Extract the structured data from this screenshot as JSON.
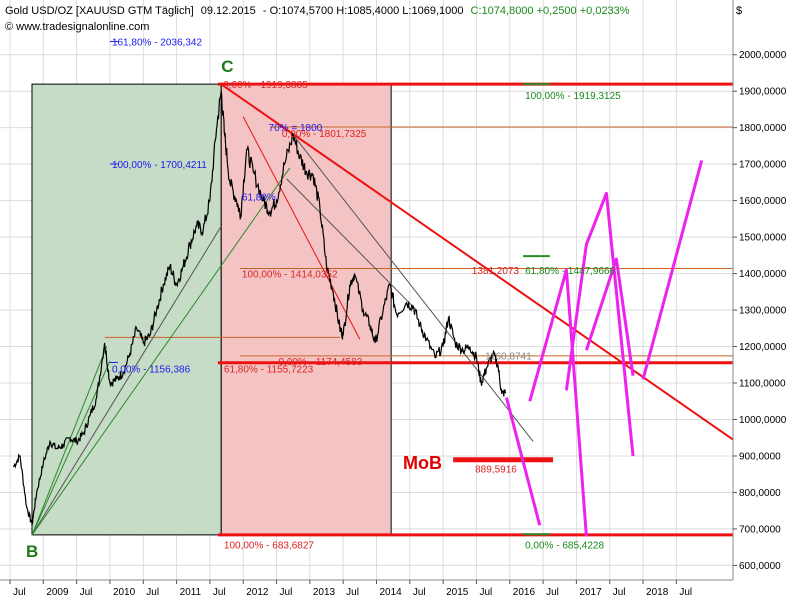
{
  "header": {
    "symbol": "Gold USD/OZ [XAUUSD GTM  Täglich]",
    "date": "09.12.2015",
    "quote_ohl": "- O:1074,5700 H:1085,4000 L:1069,1000",
    "quote_close": "C:1074,8000 +0,2500 +0,0233%",
    "website": "© www.tradesignalonline.com",
    "currency": "$"
  },
  "colors": {
    "price": "#000000",
    "grid": "#dcdcdc",
    "green_box": "#c6dcc6",
    "red_box": "#f4c4c4",
    "support_red": "#ee1111",
    "fib_orange": "#c86428",
    "projection": "#ee22ee",
    "fan_green": "#2a8a2a",
    "trend_grey": "#555555",
    "label_blue": "#1a1aee",
    "label_red": "#dd2222",
    "label_green": "#1a8a1a"
  },
  "chart_data": {
    "type": "line",
    "series": [
      {
        "values": [
          [
            2008.55,
            870
          ],
          [
            2008.65,
            900
          ],
          [
            2008.75,
            760
          ],
          [
            2008.83,
            712
          ],
          [
            2008.9,
            800
          ],
          [
            2009.0,
            880
          ],
          [
            2009.1,
            940
          ],
          [
            2009.2,
            920
          ],
          [
            2009.3,
            930
          ],
          [
            2009.4,
            950
          ],
          [
            2009.5,
            940
          ],
          [
            2009.6,
            960
          ],
          [
            2009.7,
            1010
          ],
          [
            2009.8,
            1060
          ],
          [
            2009.92,
            1210
          ],
          [
            2010.0,
            1100
          ],
          [
            2010.1,
            1110
          ],
          [
            2010.2,
            1130
          ],
          [
            2010.3,
            1180
          ],
          [
            2010.4,
            1250
          ],
          [
            2010.5,
            1210
          ],
          [
            2010.6,
            1230
          ],
          [
            2010.7,
            1300
          ],
          [
            2010.8,
            1370
          ],
          [
            2010.9,
            1420
          ],
          [
            2011.0,
            1370
          ],
          [
            2011.1,
            1420
          ],
          [
            2011.2,
            1480
          ],
          [
            2011.3,
            1530
          ],
          [
            2011.4,
            1520
          ],
          [
            2011.5,
            1600
          ],
          [
            2011.6,
            1800
          ],
          [
            2011.67,
            1900
          ],
          [
            2011.72,
            1780
          ],
          [
            2011.8,
            1650
          ],
          [
            2011.9,
            1600
          ],
          [
            2011.96,
            1560
          ],
          [
            2012.05,
            1740
          ],
          [
            2012.15,
            1680
          ],
          [
            2012.3,
            1600
          ],
          [
            2012.4,
            1570
          ],
          [
            2012.5,
            1600
          ],
          [
            2012.62,
            1700
          ],
          [
            2012.75,
            1780
          ],
          [
            2012.85,
            1720
          ],
          [
            2012.95,
            1680
          ],
          [
            2013.05,
            1670
          ],
          [
            2013.15,
            1580
          ],
          [
            2013.25,
            1420
          ],
          [
            2013.35,
            1350
          ],
          [
            2013.45,
            1250
          ],
          [
            2013.5,
            1230
          ],
          [
            2013.6,
            1370
          ],
          [
            2013.67,
            1400
          ],
          [
            2013.8,
            1300
          ],
          [
            2013.9,
            1260
          ],
          [
            2013.98,
            1210
          ],
          [
            2014.1,
            1300
          ],
          [
            2014.2,
            1370
          ],
          [
            2014.3,
            1290
          ],
          [
            2014.45,
            1320
          ],
          [
            2014.55,
            1310
          ],
          [
            2014.65,
            1260
          ],
          [
            2014.75,
            1220
          ],
          [
            2014.88,
            1170
          ],
          [
            2015.0,
            1200
          ],
          [
            2015.08,
            1280
          ],
          [
            2015.18,
            1210
          ],
          [
            2015.3,
            1190
          ],
          [
            2015.4,
            1200
          ],
          [
            2015.5,
            1170
          ],
          [
            2015.57,
            1100
          ],
          [
            2015.65,
            1140
          ],
          [
            2015.75,
            1180
          ],
          [
            2015.82,
            1150
          ],
          [
            2015.88,
            1070
          ],
          [
            2015.94,
            1075
          ]
        ]
      }
    ],
    "x_axis": {
      "range": [
        2008.35,
        2019.35
      ],
      "tick_labels": [
        {
          "value": 2008.5,
          "label": "Jul"
        },
        {
          "value": 2009.0,
          "label": "2009"
        },
        {
          "value": 2009.5,
          "label": "Jul"
        },
        {
          "value": 2010.0,
          "label": "2010"
        },
        {
          "value": 2010.5,
          "label": "Jul"
        },
        {
          "value": 2011.0,
          "label": "2011"
        },
        {
          "value": 2011.5,
          "label": "Jul"
        },
        {
          "value": 2012.0,
          "label": "2012"
        },
        {
          "value": 2012.5,
          "label": "Jul"
        },
        {
          "value": 2013.0,
          "label": "2013"
        },
        {
          "value": 2013.5,
          "label": "Jul"
        },
        {
          "value": 2014.0,
          "label": "2014"
        },
        {
          "value": 2014.5,
          "label": "Jul"
        },
        {
          "value": 2015.0,
          "label": "2015"
        },
        {
          "value": 2015.5,
          "label": "Jul"
        },
        {
          "value": 2016.0,
          "label": "2016"
        },
        {
          "value": 2016.5,
          "label": "Jul"
        },
        {
          "value": 2017.0,
          "label": "2017"
        },
        {
          "value": 2017.5,
          "label": "Jul"
        },
        {
          "value": 2018.0,
          "label": "2018"
        },
        {
          "value": 2018.5,
          "label": "Jul"
        }
      ]
    },
    "y_axis": {
      "range": [
        560,
        2150
      ],
      "side": "right",
      "ticks": [
        600,
        700,
        800,
        900,
        1000,
        1100,
        1200,
        1300,
        1400,
        1500,
        1600,
        1700,
        1800,
        1900,
        2000
      ],
      "tick_labels": [
        "600,0000",
        "700,0000",
        "800,0000",
        "900,0000",
        "1000,0000",
        "1100,0000",
        "1200,0000",
        "1300,0000",
        "1400,0000",
        "1500,0000",
        "1600,0000",
        "1700,0000",
        "1800,0000",
        "1900,0000",
        "2000,0000"
      ]
    },
    "grid": true,
    "regions": [
      {
        "name": "green-box",
        "x": [
          2008.83,
          2011.67
        ],
        "y": [
          683.6827,
          1919.3885
        ],
        "color": "#c6dcc6"
      },
      {
        "name": "red-box",
        "x": [
          2011.67,
          2014.22
        ],
        "y": [
          683.6827,
          1919.3885
        ],
        "color": "#f4c4c4"
      }
    ],
    "hlines": [
      {
        "name": "top-support",
        "y": 1919.3885,
        "x": [
          2011.62,
          2019.35
        ],
        "color": "#ee1111",
        "width": 3
      },
      {
        "name": "key-level",
        "y": 1155.7223,
        "x": [
          2011.62,
          2019.35
        ],
        "color": "#ee1111",
        "width": 3
      },
      {
        "name": "bottom-support",
        "y": 683.6827,
        "x": [
          2011.62,
          2019.35
        ],
        "color": "#ee1111",
        "width": 3
      },
      {
        "name": "fib-1801",
        "y": 1801.7325,
        "x": [
          2012.4,
          2019.35
        ],
        "color": "#c86428",
        "width": 1
      },
      {
        "name": "fib-1414",
        "y": 1414.0352,
        "x": [
          2011.95,
          2019.35
        ],
        "color": "#c86428",
        "width": 1
      },
      {
        "name": "fib-1174",
        "y": 1174.4583,
        "x": [
          2011.95,
          2019.35
        ],
        "color": "#c86428",
        "width": 1
      },
      {
        "name": "level-1225",
        "y": 1225,
        "x": [
          2009.92,
          2013.45
        ],
        "color": "#c86428",
        "width": 1
      },
      {
        "name": "mob-level",
        "y": 889.5916,
        "x": [
          2015.15,
          2016.65
        ],
        "color": "#ee1111",
        "width": 5
      },
      {
        "name": "ext-blue",
        "y": 2036.342,
        "x": [
          2010.0,
          2010.12
        ],
        "color": "#1a1aee",
        "width": 1
      },
      {
        "name": "zero-blue",
        "y": 1156.386,
        "x": [
          2010.0,
          2010.12
        ],
        "color": "#1a1aee",
        "width": 1
      },
      {
        "name": "hundred-blue",
        "y": 1700.4211,
        "x": [
          2010.0,
          2010.12
        ],
        "color": "#1a1aee",
        "width": 1
      },
      {
        "name": "green-top-mark",
        "y": 1919.3125,
        "x": [
          2016.2,
          2016.6
        ],
        "color": "#2a8a2a",
        "width": 2
      },
      {
        "name": "green-mid-mark",
        "y": 1447.9666,
        "x": [
          2016.2,
          2016.6
        ],
        "color": "#2a8a2a",
        "width": 2
      },
      {
        "name": "green-bottom-mark",
        "y": 685.4228,
        "x": [
          2016.2,
          2016.6
        ],
        "color": "#2a8a2a",
        "width": 2
      }
    ],
    "trendlines": [
      {
        "name": "main-downtrend",
        "points": [
          [
            2011.67,
            1919
          ],
          [
            2019.35,
            945
          ]
        ],
        "color": "#ee1111",
        "width": 2
      },
      {
        "name": "thin-downtrend",
        "points": [
          [
            2012.0,
            1830
          ],
          [
            2013.75,
            1220
          ]
        ],
        "color": "#ee1111",
        "width": 1
      },
      {
        "name": "grey-trend",
        "points": [
          [
            2012.75,
            1780
          ],
          [
            2016.35,
            940
          ]
        ],
        "color": "#555555",
        "width": 1
      },
      {
        "name": "grey-trend-2",
        "points": [
          [
            2012.65,
            1660
          ],
          [
            2014.6,
            1300
          ]
        ],
        "color": "#555555",
        "width": 1
      },
      {
        "name": "fan-1",
        "points": [
          [
            2008.83,
            683
          ],
          [
            2011.67,
            1530
          ]
        ],
        "color": "#555555",
        "width": 1
      },
      {
        "name": "fan-2",
        "points": [
          [
            2008.83,
            683
          ],
          [
            2012.7,
            1690
          ]
        ],
        "color": "#2a8a2a",
        "width": 1
      },
      {
        "name": "fan-3",
        "points": [
          [
            2008.83,
            683
          ],
          [
            2010.0,
            1160
          ]
        ],
        "color": "#2a8a2a",
        "width": 1
      },
      {
        "name": "fan-4",
        "points": [
          [
            2008.83,
            683
          ],
          [
            2009.95,
            1200
          ]
        ],
        "color": "#2a8a2a",
        "width": 1
      }
    ],
    "projections": [
      {
        "name": "projection-1",
        "points": [
          [
            2015.95,
            1060
          ],
          [
            2016.45,
            710
          ]
        ]
      },
      {
        "name": "projection-2",
        "points": [
          [
            2016.3,
            1050
          ],
          [
            2016.85,
            1410
          ],
          [
            2017.15,
            680
          ]
        ]
      },
      {
        "name": "projection-3",
        "points": [
          [
            2016.85,
            1080
          ],
          [
            2017.15,
            1480
          ],
          [
            2017.45,
            1620
          ],
          [
            2017.85,
            900
          ]
        ]
      },
      {
        "name": "projection-4",
        "points": [
          [
            2017.15,
            1190
          ],
          [
            2017.6,
            1440
          ],
          [
            2017.85,
            1120
          ]
        ]
      },
      {
        "name": "projection-5",
        "points": [
          [
            2018.0,
            1110
          ],
          [
            2018.88,
            1710
          ]
        ]
      }
    ],
    "annotations": [
      {
        "id": "a1",
        "text": "161,80% - 2036,342",
        "x": 2010.0,
        "y": 2036.342,
        "color": "#1a1aee"
      },
      {
        "id": "a2",
        "text": "0,00% - 1919,3885",
        "x": 2011.67,
        "y": 1919.3885,
        "color": "#dd2222"
      },
      {
        "id": "a3",
        "text": "70% = 1800",
        "x": 2012.35,
        "y": 1801.7325,
        "color": "#1a1aee"
      },
      {
        "id": "a4",
        "text": "0,00% - 1801,7325",
        "x": 2012.55,
        "y": 1785,
        "color": "#dd2222"
      },
      {
        "id": "a5",
        "text": "100,00% - 1700,4211",
        "x": 2010.0,
        "y": 1700.4211,
        "color": "#1a1aee"
      },
      {
        "id": "a6",
        "text": "61,80%",
        "x": 2011.95,
        "y": 1612,
        "color": "#1a1aee"
      },
      {
        "id": "a7",
        "text": "100,00% - 1414,0352",
        "x": 2011.95,
        "y": 1400,
        "color": "#dd2222"
      },
      {
        "id": "a8",
        "text": "1381,2073",
        "x": 2015.4,
        "y": 1410,
        "color": "#dd2222"
      },
      {
        "id": "a9",
        "text": "61,80% - 1447,9666",
        "x": 2016.2,
        "y": 1410,
        "color": "#1a8a1a"
      },
      {
        "id": "a10",
        "text": "1160,8741",
        "x": 2015.6,
        "y": 1175,
        "color": "#888888"
      },
      {
        "id": "a11",
        "text": "0,00% - 1156,386",
        "x": 2010.0,
        "y": 1140,
        "color": "#1a1aee"
      },
      {
        "id": "a12",
        "text": "0,00% - 1174,4583",
        "x": 2012.5,
        "y": 1160,
        "color": "#dd2222"
      },
      {
        "id": "a13",
        "text": "61,80% - 1155,7223",
        "x": 2011.68,
        "y": 1140,
        "color": "#dd2222"
      },
      {
        "id": "a14",
        "text": "889,5916",
        "x": 2015.45,
        "y": 865,
        "color": "#dd2222"
      },
      {
        "id": "a15",
        "text": "100,00% - 683,6827",
        "x": 2011.68,
        "y": 658,
        "color": "#dd2222"
      },
      {
        "id": "a16",
        "text": "100,00% - 1919,3125",
        "x": 2016.2,
        "y": 1890,
        "color": "#1a8a1a"
      },
      {
        "id": "a17",
        "text": "0,00% - 685,4228",
        "x": 2016.2,
        "y": 658,
        "color": "#1a8a1a"
      }
    ],
    "points": [
      {
        "id": "point-b",
        "label": "B",
        "x": 2008.83,
        "y": 683.6827
      },
      {
        "id": "point-c",
        "label": "C",
        "x": 2011.67,
        "y": 1919.3885
      }
    ],
    "mob_label": "MoB"
  }
}
